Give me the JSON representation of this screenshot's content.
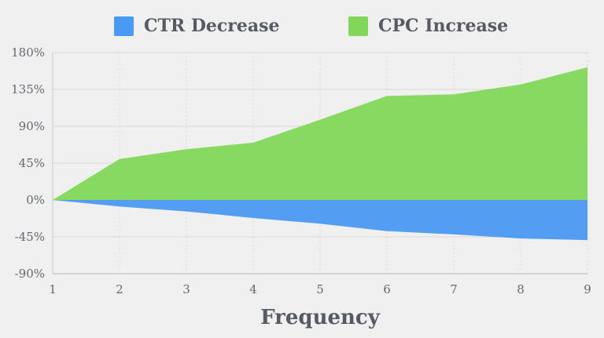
{
  "chart_data": {
    "type": "area",
    "title": "",
    "xlabel": "Frequency",
    "ylabel": "",
    "x": [
      1,
      2,
      3,
      4,
      5,
      6,
      7,
      8,
      9
    ],
    "series": [
      {
        "name": "CTR Decrease",
        "color": "#4a99f2",
        "values": [
          0,
          -8,
          -14,
          -22,
          -29,
          -38,
          -42,
          -47,
          -49
        ]
      },
      {
        "name": "CPC Increase",
        "color": "#82d75a",
        "values": [
          0,
          50,
          62,
          70,
          98,
          127,
          129,
          141,
          162
        ]
      }
    ],
    "ylim": [
      -90,
      180
    ],
    "yticks": [
      180,
      135,
      90,
      45,
      0,
      -45,
      -90
    ],
    "ytick_suffix": "%",
    "xticks": [
      "1",
      "2",
      "3",
      "4",
      "5",
      "6",
      "7",
      "8",
      "9"
    ],
    "grid": true,
    "legend_position": "top"
  },
  "colors": {
    "background": "#f0f0f0",
    "grid": "#d9d9d9",
    "axis": "#b3b6b8",
    "left_axis": "#c9c9c9",
    "tick_text": "#65696f",
    "label_text": "#565b63"
  }
}
